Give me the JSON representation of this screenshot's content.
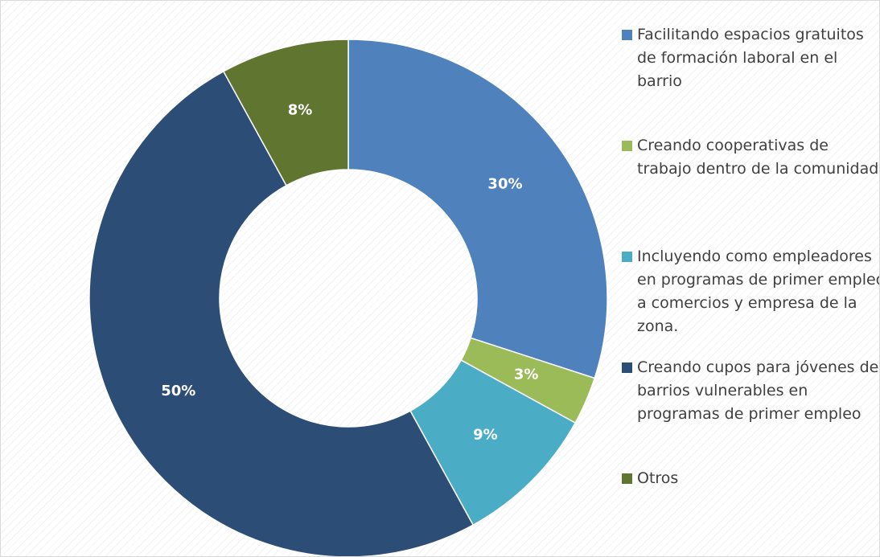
{
  "chart_data": {
    "type": "donut",
    "categories": [
      "Facilitando espacios gratuitos de formación laboral en el barrio",
      "Creando cooperativas de trabajo dentro de la comunidad",
      "Incluyendo como empleadores en programas de primer empleo a comercios y empresa de la zona.",
      "Creando cupos para jóvenes de barrios vulnerables en programas de primer empleo",
      "Otros"
    ],
    "values": [
      30,
      3,
      9,
      50,
      8
    ],
    "value_labels": [
      "30%",
      "3%",
      "9%",
      "50%",
      "8%"
    ],
    "colors": [
      "#4f81bd",
      "#9bbb59",
      "#4bacc6",
      "#2c4d75",
      "#5f7530"
    ],
    "legend": "right"
  }
}
